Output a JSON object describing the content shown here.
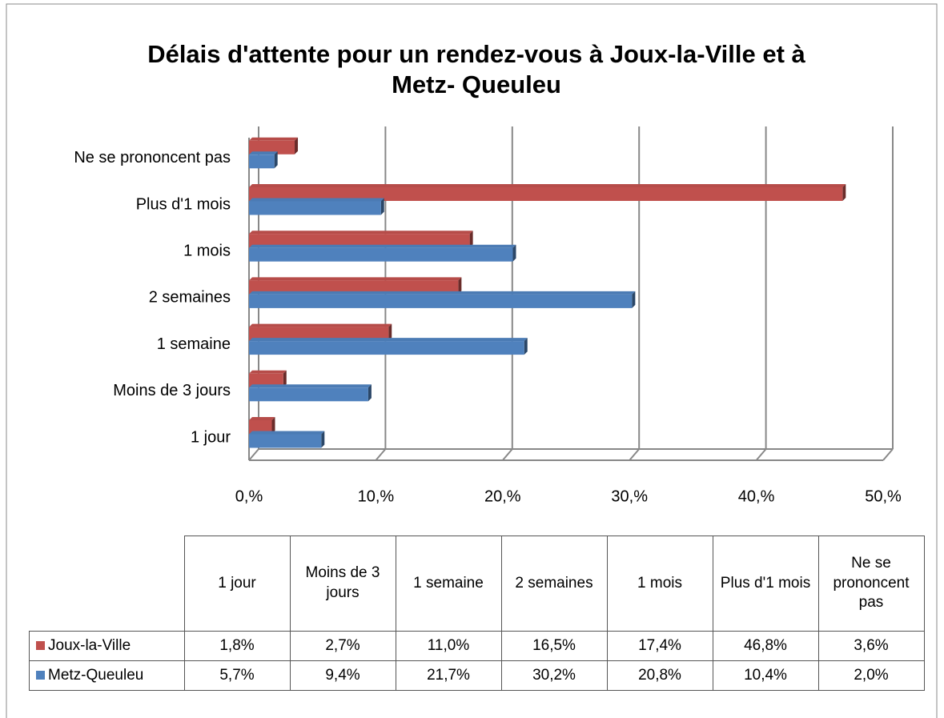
{
  "chart_data": {
    "type": "bar",
    "orientation": "horizontal",
    "title": "Délais d'attente pour un rendez-vous à Joux-la-Ville et à Metz- Queuleu",
    "categories": [
      "1 jour",
      "Moins de 3 jours",
      "1 semaine",
      "2 semaines",
      "1 mois",
      "Plus d'1 mois",
      "Ne se prononcent pas"
    ],
    "series": [
      {
        "name": "Joux-la-Ville",
        "color": "#c0504d",
        "values": [
          1.8,
          2.7,
          11.0,
          16.5,
          17.4,
          46.8,
          3.6
        ],
        "value_labels": [
          "1,8%",
          "2,7%",
          "11,0%",
          "16,5%",
          "17,4%",
          "46,8%",
          "3,6%"
        ]
      },
      {
        "name": "Metz-Queuleu",
        "color": "#4f81bd",
        "values": [
          5.7,
          9.4,
          21.7,
          30.2,
          20.8,
          10.4,
          2.0
        ],
        "value_labels": [
          "5,7%",
          "9,4%",
          "21,7%",
          "30,2%",
          "20,8%",
          "10,4%",
          "2,0%"
        ]
      }
    ],
    "xlim": [
      0,
      50
    ],
    "xticks": [
      {
        "value": 0,
        "label": "0,%"
      },
      {
        "value": 10,
        "label": "10,%"
      },
      {
        "value": 20,
        "label": "20,%"
      },
      {
        "value": 30,
        "label": "30,%"
      },
      {
        "value": 40,
        "label": "40,%"
      },
      {
        "value": 50,
        "label": "50,%"
      }
    ],
    "grid": true,
    "data_table": true
  }
}
